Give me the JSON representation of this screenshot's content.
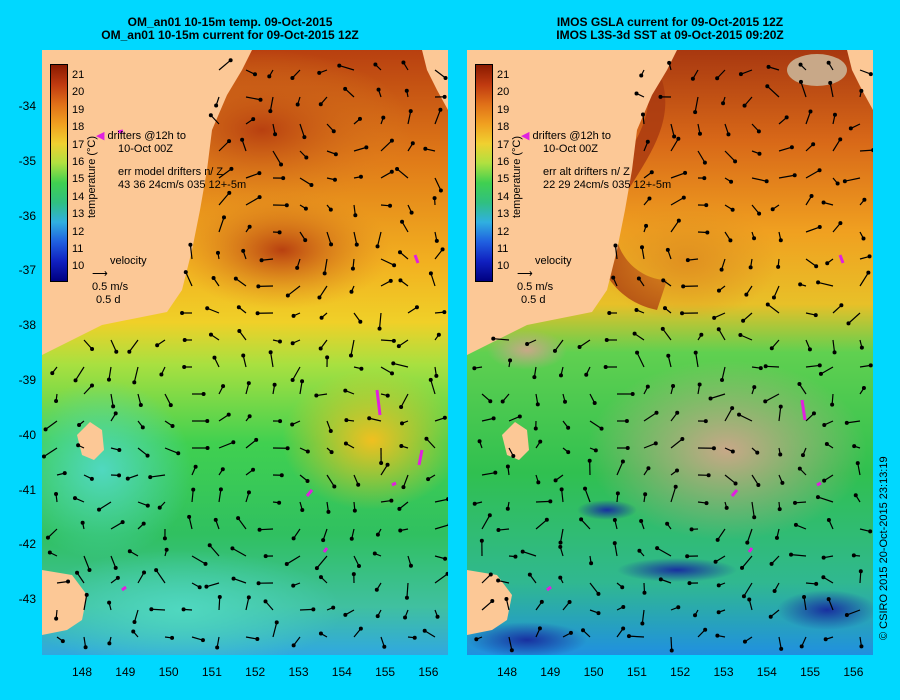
{
  "left_panel": {
    "title_line1": "OM_an01 10-15m temp. 09-Oct-2015",
    "title_line2": "OM_an01 10-15m current for 09-Oct-2015 12Z",
    "drifters_line1": "drifters @12h to",
    "drifters_line2": "10-Oct 00Z",
    "err_line1": "err model drifters n/ Z",
    "err_line2": "43 36 24cm/s 035 12+-5m",
    "velocity_label": "velocity",
    "velocity_scale": "0.5 m/s",
    "velocity_time": "0.5 d",
    "colorbar_title": "temperature (°C)"
  },
  "right_panel": {
    "title_line1": "IMOS GSLA current for 09-Oct-2015 12Z",
    "title_line2": "IMOS L3S-3d SST at 09-Oct-2015 09:20Z",
    "drifters_line1": "drifters @12h to",
    "drifters_line2": "10-Oct 00Z",
    "err_line1": "err alt drifters n/ Z",
    "err_line2": "22 29 24cm/s 035 12+-5m",
    "velocity_label": "velocity",
    "velocity_scale": "0.5 m/s",
    "velocity_time": "0.5 d",
    "colorbar_title": "temperature (°C)"
  },
  "colorbar_ticks": [
    "21",
    "20",
    "19",
    "18",
    "17",
    "16",
    "15",
    "14",
    "13",
    "12",
    "11",
    "10"
  ],
  "y_ticks": [
    "-34",
    "-35",
    "-36",
    "-37",
    "-38",
    "-39",
    "-40",
    "-41",
    "-42",
    "-43"
  ],
  "x_ticks": [
    "148",
    "149",
    "150",
    "151",
    "152",
    "153",
    "154",
    "155",
    "156"
  ],
  "credit": "© CSIRO 2015   20-Oct-2015 23:13:19",
  "colors": {
    "background": "#00d8ff",
    "land": "#fcc896",
    "no_data": "#c8a888",
    "drifter": "#e020e0"
  }
}
